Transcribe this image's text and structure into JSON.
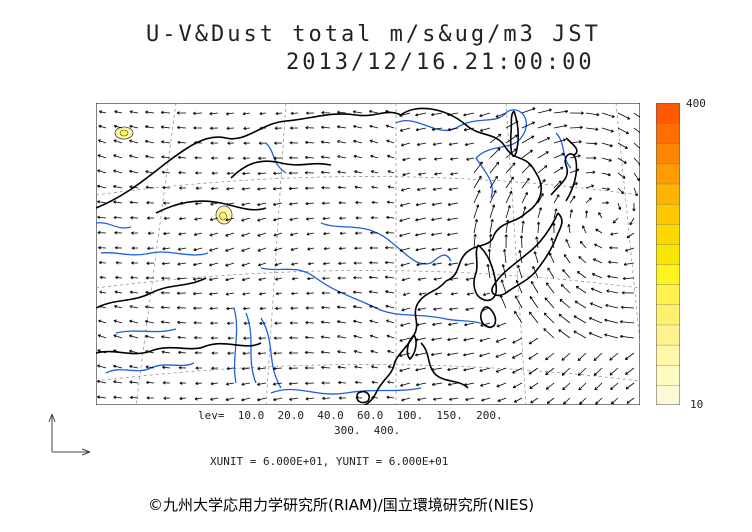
{
  "title": {
    "line1": "U-V&Dust total m/s&ug/m3 JST",
    "line2": "2013/12/16.21:00:00"
  },
  "colorbar": {
    "max_label": "400",
    "min_label": "10",
    "colors": [
      "#fff9d8",
      "#fffbc0",
      "#fff7a8",
      "#fff38e",
      "#fff070",
      "#fff24f",
      "#fff31f",
      "#f7e600",
      "#ffd700",
      "#ffc800",
      "#ffb400",
      "#ff9c00",
      "#ff8500",
      "#ff6e00",
      "#ff5a00"
    ]
  },
  "levels": {
    "line1": "lev=  10.0  20.0  40.0  60.0  100.  150.  200.",
    "line2": "300.  400."
  },
  "units": "XUNIT = 6.000E+01, YUNIT = 6.000E+01",
  "credit": "©九州大学応用力学研究所(RIAM)/国立環境研究所(NIES)",
  "colors": {
    "coast": "#000000",
    "river": "#1f5fe0",
    "vector": "#000000",
    "grid": "#888888"
  },
  "icons": {
    "axis": "unit-vector-axes-icon"
  }
}
